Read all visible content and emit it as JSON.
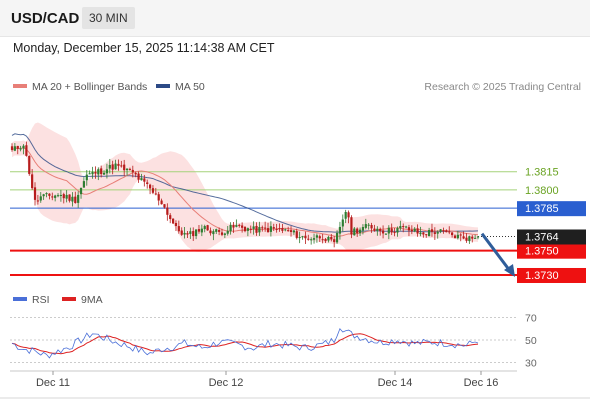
{
  "header": {
    "pair": "USD/CAD",
    "timeframe": "30 MIN"
  },
  "datetime": "Monday, December 15, 2025 11:14:38 AM CET",
  "legend": {
    "ma20": "MA 20 + Bollinger Bands",
    "ma50": "MA 50",
    "credit": "Research © 2025 Trading Central",
    "rsi": "RSI",
    "rsi_ma": "9MA"
  },
  "colors": {
    "ma20": "#e87f78",
    "band_fill": "#fcdcdc",
    "ma50": "#2c4a86",
    "candle_up": "#2e7d32",
    "candle_down": "#b71c1c",
    "resistance": "#a5d27a",
    "support": "#ee1111",
    "pivot": "#2a5fd0",
    "arrow": "#2f5d9a",
    "rsi": "#4a6fd8",
    "rsi_ma": "#dd2222"
  },
  "chart_data": [
    {
      "type": "candlestick",
      "x_ticks": [
        "Dec 11",
        "Dec 12",
        "Dec 14",
        "Dec 16"
      ],
      "ylim": [
        1.3716,
        1.3874
      ],
      "grid": false,
      "last_price": "1.3764",
      "levels": [
        {
          "label": "1.3815",
          "value": 1.3815,
          "kind": "resistance"
        },
        {
          "label": "1.3800",
          "value": 1.38,
          "kind": "resistance"
        },
        {
          "label": "1.3785",
          "value": 1.3785,
          "kind": "pivot"
        },
        {
          "label": "1.3750",
          "value": 1.375,
          "kind": "support"
        },
        {
          "label": "1.3730",
          "value": 1.373,
          "kind": "support"
        }
      ],
      "close_keypoints": [
        [
          0,
          1.3832
        ],
        [
          4,
          1.3838
        ],
        [
          6,
          1.3815
        ],
        [
          8,
          1.379
        ],
        [
          10,
          1.3794
        ],
        [
          16,
          1.3796
        ],
        [
          22,
          1.3792
        ],
        [
          26,
          1.3812
        ],
        [
          30,
          1.3815
        ],
        [
          36,
          1.382
        ],
        [
          42,
          1.3814
        ],
        [
          47,
          1.3803
        ],
        [
          52,
          1.379
        ],
        [
          57,
          1.3768
        ],
        [
          61,
          1.3762
        ],
        [
          66,
          1.3769
        ],
        [
          72,
          1.3765
        ],
        [
          78,
          1.377
        ],
        [
          84,
          1.3767
        ],
        [
          90,
          1.3768
        ],
        [
          96,
          1.3766
        ],
        [
          102,
          1.376
        ],
        [
          108,
          1.3762
        ],
        [
          112,
          1.3755
        ],
        [
          114,
          1.377
        ],
        [
          116,
          1.3783
        ],
        [
          118,
          1.3766
        ],
        [
          124,
          1.377
        ],
        [
          130,
          1.3766
        ],
        [
          136,
          1.3769
        ],
        [
          142,
          1.3764
        ],
        [
          148,
          1.3766
        ],
        [
          154,
          1.3762
        ],
        [
          160,
          1.376
        ],
        [
          162,
          1.3764
        ]
      ],
      "forecast": {
        "from": 1.3764,
        "to": 1.373
      }
    },
    {
      "type": "line",
      "name": "RSI",
      "ylim": [
        25,
        75
      ],
      "y_ticks": [
        "70",
        "50",
        "30"
      ],
      "rsi_keypoints": [
        [
          0,
          47
        ],
        [
          4,
          42
        ],
        [
          8,
          40
        ],
        [
          12,
          36
        ],
        [
          16,
          40
        ],
        [
          20,
          44
        ],
        [
          24,
          50
        ],
        [
          28,
          56
        ],
        [
          32,
          52
        ],
        [
          36,
          48
        ],
        [
          40,
          45
        ],
        [
          44,
          41
        ],
        [
          48,
          38
        ],
        [
          52,
          42
        ],
        [
          56,
          44
        ],
        [
          60,
          47
        ],
        [
          66,
          43
        ],
        [
          72,
          48
        ],
        [
          78,
          46
        ],
        [
          84,
          43
        ],
        [
          90,
          47
        ],
        [
          96,
          45
        ],
        [
          102,
          43
        ],
        [
          108,
          46
        ],
        [
          112,
          50
        ],
        [
          114,
          63
        ],
        [
          116,
          58
        ],
        [
          118,
          55
        ],
        [
          122,
          52
        ],
        [
          128,
          48
        ],
        [
          134,
          50
        ],
        [
          140,
          47
        ],
        [
          146,
          48
        ],
        [
          152,
          47
        ],
        [
          158,
          45
        ],
        [
          162,
          50
        ]
      ]
    }
  ]
}
